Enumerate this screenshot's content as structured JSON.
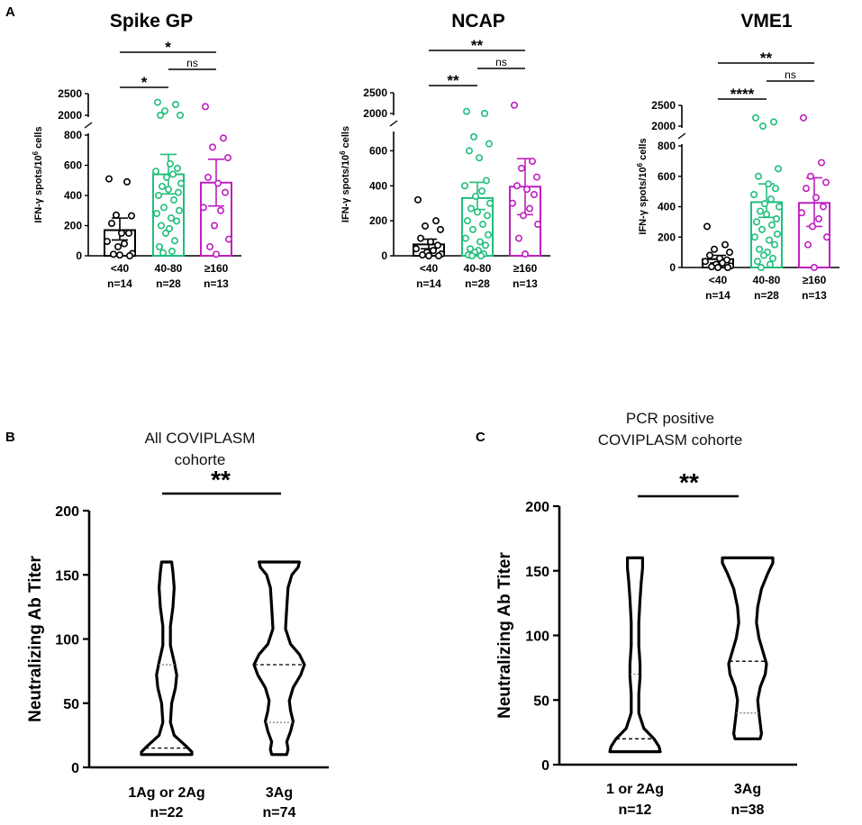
{
  "figure": {
    "panel_labels": [
      "A",
      "B",
      "C"
    ]
  },
  "chart_data": [
    {
      "type": "bar",
      "panel": "A",
      "title": "Spike GP",
      "ylabel": "IFN-γ spots/10⁶ cells",
      "ylabel_main": "IFN-γ spots/10",
      "ylabel_sup": "6",
      "ylabel_tail": " cells",
      "y_lower_range": [
        0,
        800
      ],
      "y_upper_range": [
        2000,
        2500
      ],
      "lower_ticks": [
        0,
        200,
        400,
        600,
        800
      ],
      "upper_ticks": [
        2000,
        2500
      ],
      "categories": [
        "<40",
        "40-80",
        "≥160"
      ],
      "n_labels": [
        "n=14",
        "n=28",
        "n=13"
      ],
      "colors": [
        "#000000",
        "#1fbf7a",
        "#bf1fbf"
      ],
      "means": [
        170,
        540,
        485
      ],
      "sem_low": [
        105,
        410,
        330
      ],
      "sem_high": [
        250,
        672,
        640
      ],
      "points": [
        [
          510,
          490,
          270,
          265,
          215,
          150,
          150,
          95,
          80,
          60,
          15,
          10,
          5,
          0
        ],
        [
          2300,
          2250,
          2100,
          2000,
          1950,
          610,
          580,
          560,
          540,
          520,
          480,
          460,
          440,
          420,
          400,
          370,
          320,
          300,
          280,
          250,
          230,
          200,
          180,
          150,
          100,
          60,
          30,
          20
        ],
        [
          2200,
          780,
          720,
          650,
          520,
          480,
          420,
          320,
          300,
          200,
          110,
          60,
          10
        ]
      ],
      "comparisons": [
        {
          "from": 0,
          "to": 2,
          "label": "*"
        },
        {
          "from": 0,
          "to": 1,
          "label": "*"
        },
        {
          "from": 1,
          "to": 2,
          "label": "ns"
        }
      ]
    },
    {
      "type": "bar",
      "panel": "A",
      "title": "NCAP",
      "ylabel": "IFN-γ spots/10⁶ cells",
      "ylabel_main": "IFN-γ spots/10",
      "ylabel_sup": "6",
      "ylabel_tail": " cells",
      "y_lower_range": [
        0,
        700
      ],
      "y_upper_range": [
        2000,
        2500
      ],
      "lower_ticks": [
        0,
        200,
        400,
        600
      ],
      "upper_ticks": [
        2000,
        2500
      ],
      "categories": [
        "<40",
        "40-80",
        "≥160"
      ],
      "n_labels": [
        "n=14",
        "n=28",
        "n=13"
      ],
      "colors": [
        "#000000",
        "#1fbf7a",
        "#bf1fbf"
      ],
      "means": [
        65,
        330,
        395
      ],
      "sem_low": [
        40,
        265,
        235
      ],
      "sem_high": [
        95,
        420,
        555
      ],
      "points": [
        [
          320,
          200,
          170,
          150,
          100,
          80,
          60,
          40,
          30,
          20,
          10,
          5,
          0,
          0
        ],
        [
          2050,
          1900,
          680,
          640,
          600,
          560,
          430,
          400,
          370,
          340,
          300,
          270,
          250,
          230,
          200,
          180,
          150,
          120,
          100,
          80,
          60,
          40,
          30,
          20,
          10,
          5,
          0,
          0
        ],
        [
          2200,
          540,
          500,
          450,
          400,
          380,
          350,
          300,
          270,
          230,
          180,
          100,
          10
        ]
      ],
      "comparisons": [
        {
          "from": 0,
          "to": 2,
          "label": "**"
        },
        {
          "from": 0,
          "to": 1,
          "label": "**"
        },
        {
          "from": 1,
          "to": 2,
          "label": "ns"
        }
      ]
    },
    {
      "type": "bar",
      "panel": "A",
      "title": "VME1",
      "ylabel": "IFN-γ spots/10⁶ cells",
      "ylabel_main": "IFN-γ spots/10",
      "ylabel_sup": "6",
      "ylabel_tail": " cells",
      "y_lower_range": [
        0,
        800
      ],
      "y_upper_range": [
        2000,
        2500
      ],
      "lower_ticks": [
        0,
        200,
        400,
        600,
        800
      ],
      "upper_ticks": [
        2000,
        2500
      ],
      "categories": [
        "<40",
        "40-80",
        "≥160"
      ],
      "n_labels": [
        "n=14",
        "n=28",
        "n=13"
      ],
      "colors": [
        "#000000",
        "#1fbf7a",
        "#bf1fbf"
      ],
      "means": [
        55,
        430,
        425
      ],
      "sem_low": [
        30,
        330,
        270
      ],
      "sem_high": [
        80,
        550,
        590
      ],
      "points": [
        [
          270,
          150,
          120,
          100,
          80,
          60,
          50,
          40,
          30,
          20,
          10,
          5,
          0,
          0
        ],
        [
          2200,
          2100,
          1900,
          650,
          600,
          550,
          520,
          480,
          450,
          420,
          400,
          370,
          350,
          320,
          300,
          280,
          250,
          220,
          200,
          180,
          150,
          120,
          100,
          80,
          60,
          40,
          20,
          0
        ],
        [
          2200,
          690,
          600,
          560,
          520,
          460,
          400,
          360,
          320,
          270,
          200,
          150,
          0
        ]
      ],
      "comparisons": [
        {
          "from": 0,
          "to": 2,
          "label": "**"
        },
        {
          "from": 0,
          "to": 1,
          "label": "****"
        },
        {
          "from": 1,
          "to": 2,
          "label": "ns"
        }
      ]
    },
    {
      "type": "violin",
      "panel": "B",
      "title": "All COVIPLASM cohorte",
      "title_lines": [
        "All COVIPLASM",
        "cohorte"
      ],
      "ylabel": "Neutralizing Ab Titer",
      "ylim": [
        0,
        200
      ],
      "yticks": [
        0,
        50,
        100,
        150,
        200
      ],
      "categories": [
        "1Ag or 2Ag",
        "3Ag"
      ],
      "n_labels": [
        "n=22",
        "n=74"
      ],
      "median": [
        15,
        80
      ],
      "quartile": [
        80,
        35
      ],
      "density_range": [
        [
          10,
          160
        ],
        [
          10,
          160
        ]
      ],
      "significance": "**"
    },
    {
      "type": "violin",
      "panel": "C",
      "title": "PCR positive COVIPLASM cohorte",
      "title_lines": [
        "PCR positive",
        "COVIPLASM cohorte"
      ],
      "ylabel": "Neutralizing Ab Titer",
      "ylim": [
        0,
        200
      ],
      "yticks": [
        0,
        50,
        100,
        150,
        200
      ],
      "categories": [
        "1 or 2Ag",
        "3Ag"
      ],
      "n_labels": [
        "n=12",
        "n=38"
      ],
      "median": [
        20,
        80
      ],
      "quartile": [
        70,
        40
      ],
      "density_range": [
        [
          10,
          160
        ],
        [
          20,
          160
        ]
      ],
      "significance": "**"
    }
  ]
}
